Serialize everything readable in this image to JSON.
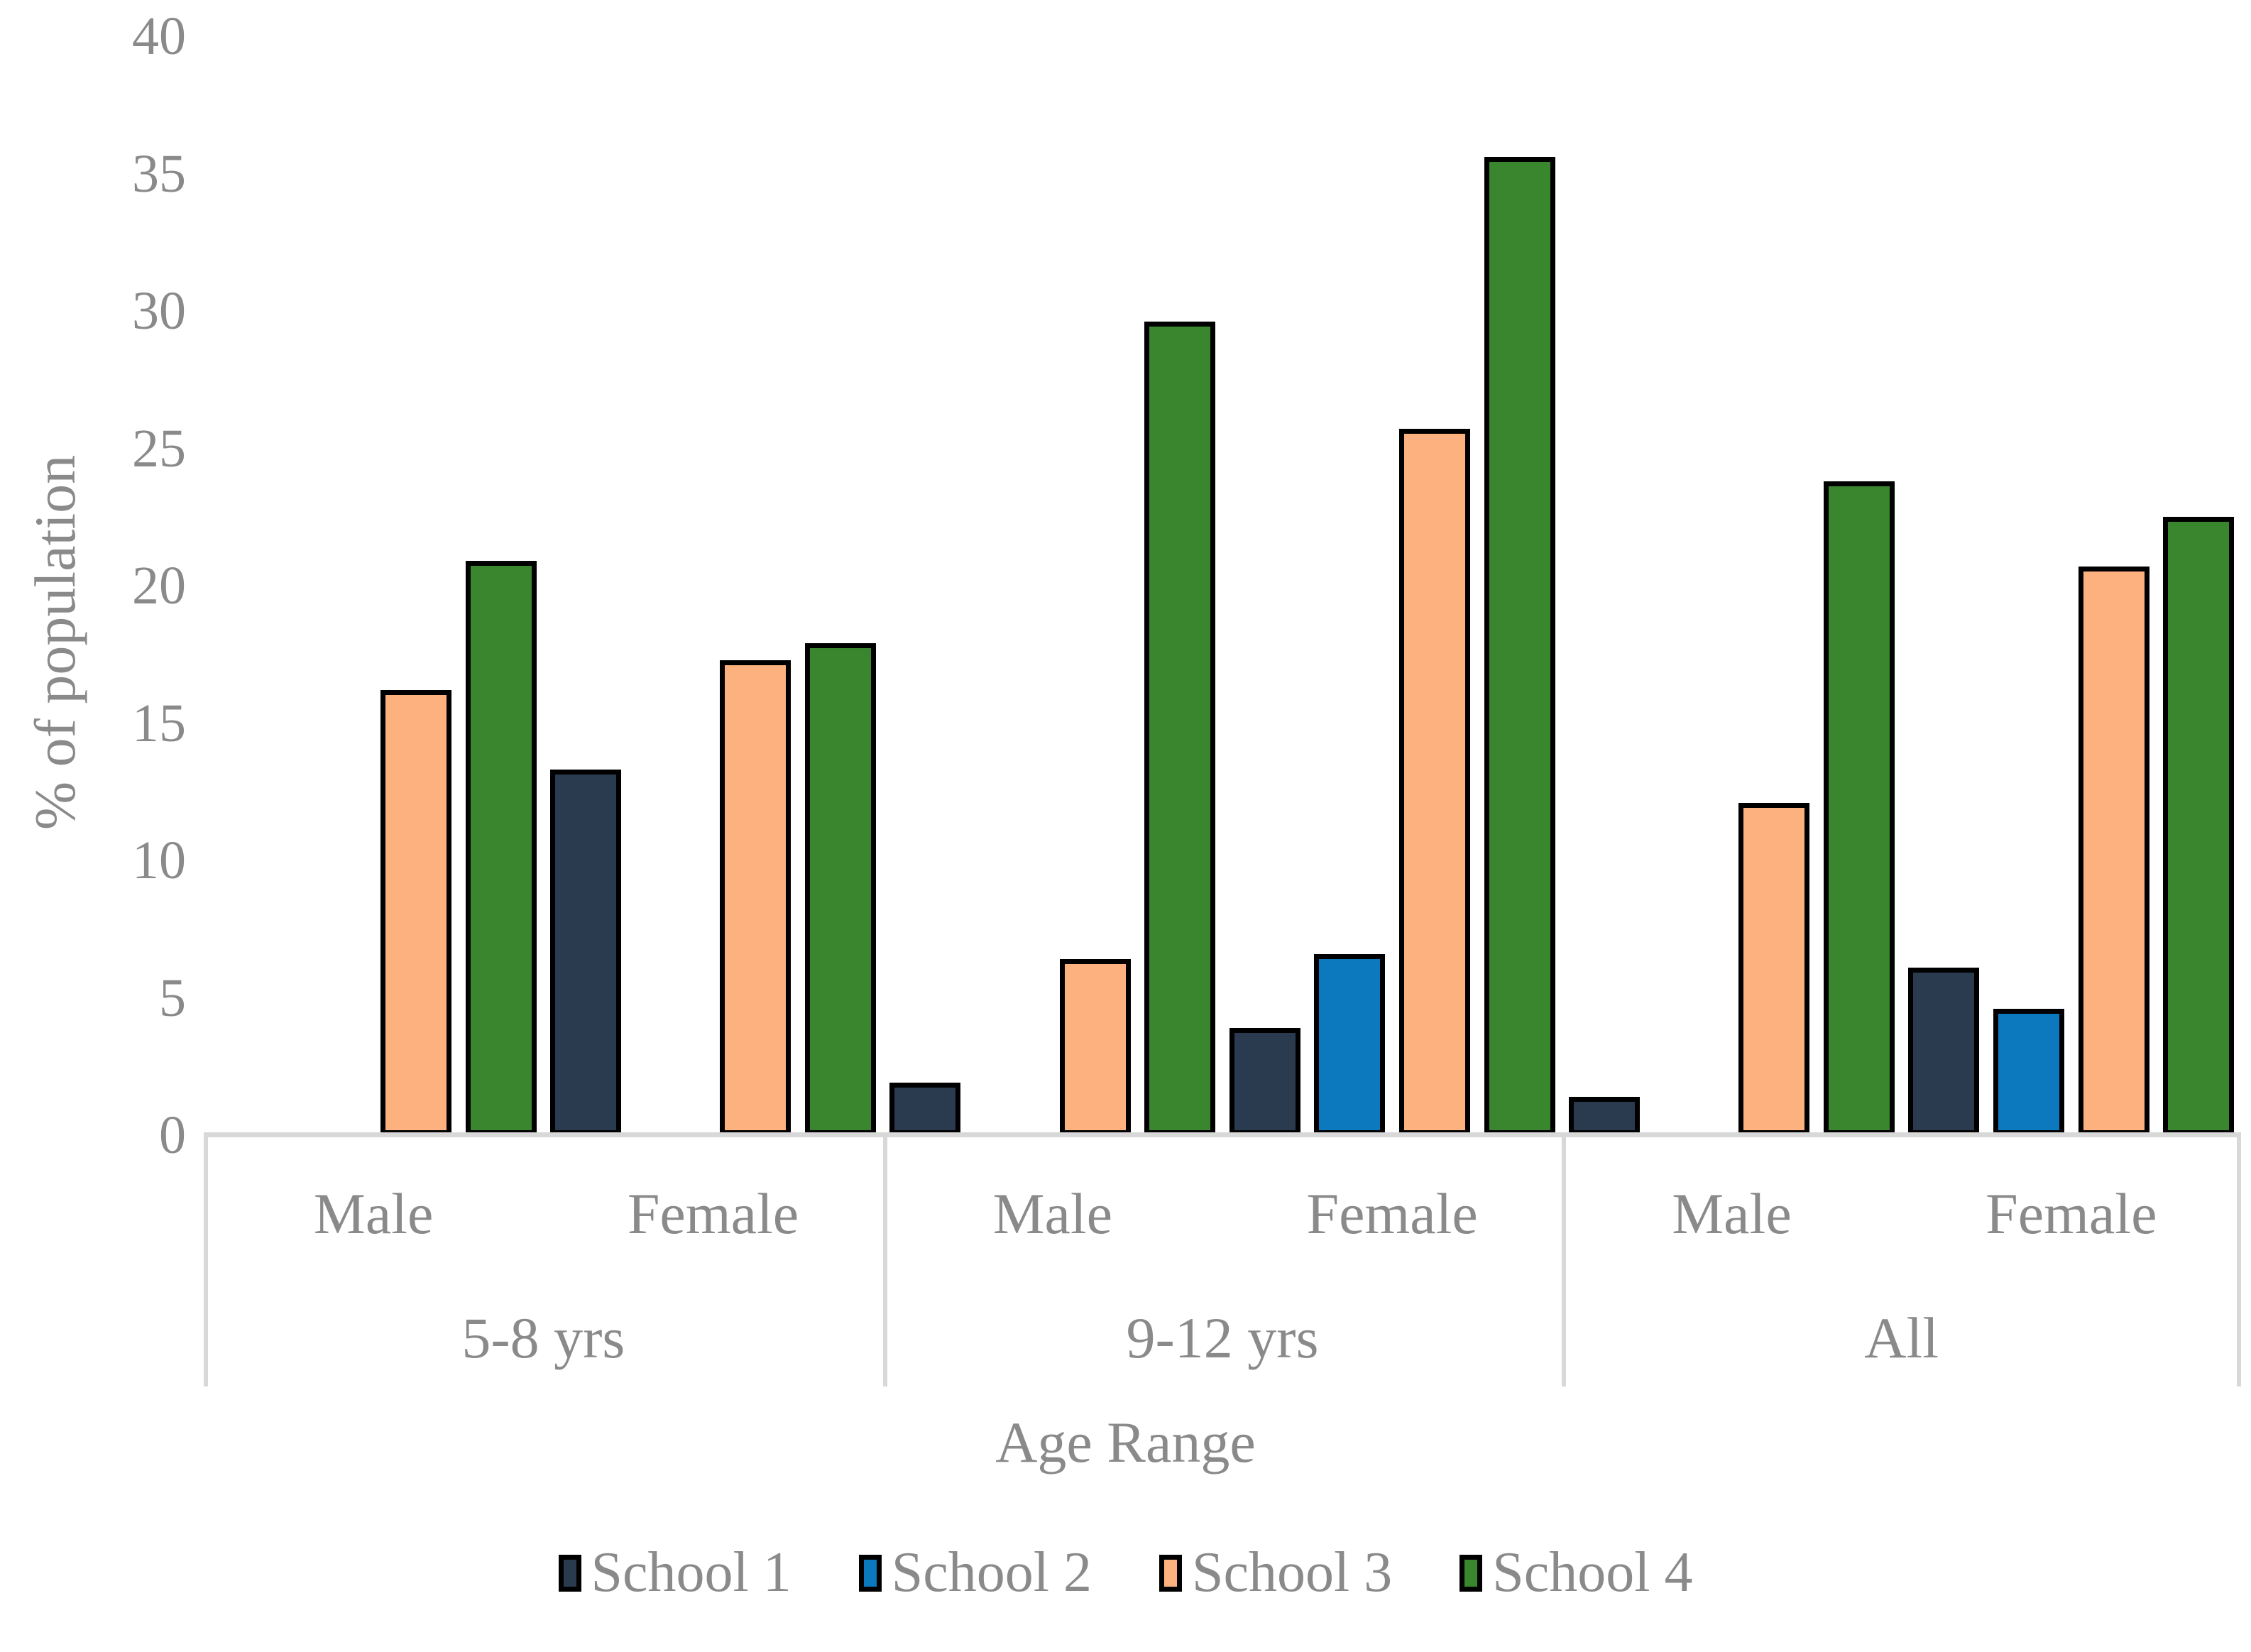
{
  "chart_data": {
    "type": "bar",
    "title": "",
    "ylabel": "% of population",
    "xlabel": "Age Range",
    "ylim": [
      0,
      40
    ],
    "yticks": [
      0,
      5,
      10,
      15,
      20,
      25,
      30,
      35,
      40
    ],
    "grid": false,
    "legend_position": "bottom",
    "age_groups": [
      "5-8 yrs",
      "9-12 yrs",
      "All"
    ],
    "genders": [
      "Male",
      "Female"
    ],
    "cluster_order": [
      "5-8 yrs Male",
      "5-8 yrs Female",
      "9-12 yrs Male",
      "9-12 yrs Female",
      "All Male",
      "All Female"
    ],
    "series": [
      {
        "name": "School 1",
        "color": "#2a3b50",
        "values": [
          0,
          13.3,
          1.9,
          3.9,
          1.4,
          6.1
        ]
      },
      {
        "name": "School 2",
        "color": "#0c78be",
        "values": [
          0,
          0,
          0,
          6.6,
          0,
          4.6
        ]
      },
      {
        "name": "School 3",
        "color": "#fcb17f",
        "values": [
          16.2,
          17.3,
          6.4,
          25.7,
          12.1,
          20.7
        ]
      },
      {
        "name": "School 4",
        "color": "#39862f",
        "values": [
          20.9,
          17.9,
          29.6,
          35.6,
          23.8,
          22.5
        ]
      }
    ],
    "bar_border_color": "#000000"
  },
  "colors": {
    "text": "#8a8a8a",
    "axis_line": "#d8d8d8",
    "background": "#ffffff"
  }
}
